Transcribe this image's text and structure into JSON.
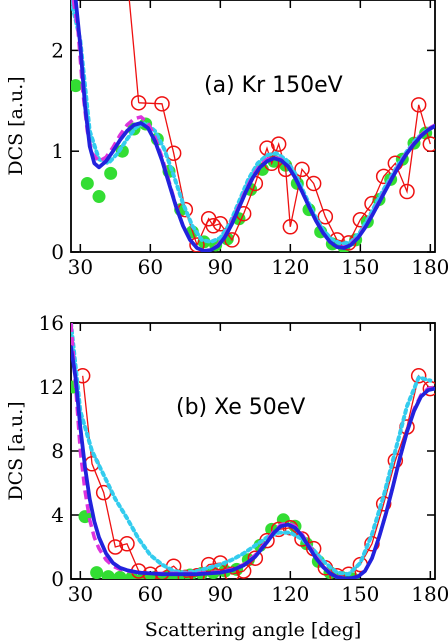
{
  "xlabel": "Scattering angle [deg]",
  "chart_data": [
    {
      "type": "line",
      "title": "(a) Kr 150eV",
      "ylabel": "DCS [a.u.]",
      "xlim": [
        26,
        182
      ],
      "ylim": [
        0,
        2.5
      ],
      "xticks": [
        30,
        60,
        90,
        120,
        150,
        180
      ],
      "yticks": [
        0,
        1,
        2
      ],
      "series": [
        {
          "style": "green-dots",
          "color": "#33dd33",
          "x": [
            28,
            33,
            38,
            43,
            48,
            53,
            58,
            63,
            68,
            73,
            78,
            83,
            88,
            93,
            98,
            103,
            108,
            113,
            118,
            123,
            128,
            133,
            138,
            143,
            148,
            153,
            158,
            163,
            168,
            173,
            178
          ],
          "y": [
            1.65,
            0.68,
            0.55,
            0.78,
            1.0,
            1.22,
            1.27,
            1.12,
            0.8,
            0.42,
            0.2,
            0.1,
            0.07,
            0.13,
            0.33,
            0.62,
            0.82,
            0.9,
            0.86,
            0.68,
            0.42,
            0.2,
            0.08,
            0.05,
            0.12,
            0.3,
            0.52,
            0.72,
            0.92,
            1.08,
            1.18
          ]
        },
        {
          "style": "red-open-circles",
          "color": "#ee1111",
          "x": [
            55,
            65,
            70,
            75,
            80,
            85,
            87,
            90,
            95,
            100,
            105,
            110,
            112,
            115,
            118,
            120,
            125,
            130,
            135,
            140,
            145,
            150,
            155,
            160,
            165,
            170,
            175,
            180
          ],
          "y": [
            1.48,
            1.47,
            0.98,
            0.42,
            0.07,
            0.33,
            0.26,
            0.28,
            0.12,
            0.38,
            0.68,
            1.03,
            0.88,
            1.07,
            0.82,
            0.25,
            0.82,
            0.68,
            0.35,
            0.12,
            0.09,
            0.32,
            0.48,
            0.75,
            0.88,
            0.6,
            1.46,
            1.07
          ]
        },
        {
          "style": "cyan-dotted",
          "color": "#33ccee",
          "x": [
            26,
            30,
            34,
            38,
            42,
            46,
            50,
            54,
            58,
            62,
            66,
            70,
            74,
            78,
            82,
            86,
            90,
            94,
            98,
            102,
            106,
            110,
            114,
            118,
            122,
            126,
            130,
            134,
            138,
            142,
            146,
            150,
            154,
            158,
            162,
            166,
            170,
            174,
            178,
            182
          ],
          "y": [
            2.5,
            2.1,
            1.2,
            0.92,
            0.88,
            0.98,
            1.12,
            1.24,
            1.28,
            1.2,
            1.02,
            0.76,
            0.48,
            0.26,
            0.12,
            0.1,
            0.14,
            0.28,
            0.5,
            0.72,
            0.88,
            0.96,
            0.98,
            0.92,
            0.78,
            0.58,
            0.38,
            0.22,
            0.12,
            0.08,
            0.1,
            0.2,
            0.36,
            0.54,
            0.7,
            0.86,
            1.0,
            1.12,
            1.2,
            1.26
          ]
        },
        {
          "style": "magenta-dashed",
          "color": "#dd33dd",
          "x": [
            27,
            29,
            31,
            33,
            35,
            38,
            41,
            44,
            47,
            50,
            53,
            56,
            59,
            62,
            65,
            68,
            71,
            74,
            77,
            80,
            83,
            86,
            89,
            92,
            95,
            98,
            101,
            104,
            107,
            110,
            113,
            116,
            119,
            122,
            125,
            128,
            131,
            134,
            137,
            140,
            143,
            146,
            149,
            152,
            155,
            158,
            161,
            164,
            167,
            170,
            173,
            176,
            179,
            182
          ],
          "y": [
            2.5,
            2.2,
            1.6,
            1.2,
            0.98,
            0.9,
            0.94,
            1.04,
            1.16,
            1.26,
            1.32,
            1.34,
            1.28,
            1.14,
            0.94,
            0.7,
            0.46,
            0.26,
            0.12,
            0.04,
            0.01,
            0.02,
            0.07,
            0.16,
            0.3,
            0.46,
            0.62,
            0.76,
            0.86,
            0.92,
            0.94,
            0.92,
            0.85,
            0.74,
            0.6,
            0.45,
            0.31,
            0.19,
            0.1,
            0.05,
            0.05,
            0.08,
            0.15,
            0.25,
            0.37,
            0.5,
            0.63,
            0.76,
            0.88,
            0.99,
            1.08,
            1.16,
            1.22,
            1.26
          ]
        },
        {
          "style": "blue-solid",
          "color": "#2222dd",
          "x": [
            28,
            30,
            32,
            34,
            36,
            38,
            41,
            44,
            47,
            50,
            53,
            56,
            59,
            62,
            65,
            68,
            71,
            74,
            77,
            80,
            83,
            86,
            89,
            92,
            95,
            98,
            101,
            104,
            107,
            110,
            113,
            116,
            119,
            122,
            125,
            128,
            131,
            134,
            137,
            140,
            143,
            146,
            149,
            152,
            155,
            158,
            161,
            164,
            167,
            170,
            173,
            176,
            179,
            182
          ],
          "y": [
            2.5,
            2.05,
            1.45,
            1.05,
            0.88,
            0.84,
            0.9,
            1.0,
            1.11,
            1.2,
            1.26,
            1.28,
            1.23,
            1.1,
            0.91,
            0.68,
            0.45,
            0.26,
            0.12,
            0.04,
            0.01,
            0.02,
            0.06,
            0.15,
            0.28,
            0.44,
            0.6,
            0.74,
            0.84,
            0.9,
            0.93,
            0.91,
            0.85,
            0.74,
            0.6,
            0.45,
            0.31,
            0.19,
            0.1,
            0.05,
            0.04,
            0.07,
            0.14,
            0.24,
            0.36,
            0.49,
            0.62,
            0.75,
            0.87,
            0.98,
            1.07,
            1.15,
            1.21,
            1.25
          ]
        },
        {
          "style": "red-line-only",
          "color": "#ee1111",
          "x": [
            51,
            53,
            55
          ],
          "y": [
            2.5,
            2.0,
            1.48
          ]
        }
      ]
    },
    {
      "type": "line",
      "title": "(b) Xe 50eV",
      "ylabel": "DCS [a.u.]",
      "xlim": [
        26,
        182
      ],
      "ylim": [
        0,
        16
      ],
      "xticks": [
        30,
        60,
        90,
        120,
        150,
        180
      ],
      "yticks": [
        0,
        4,
        8,
        12,
        16
      ],
      "series": [
        {
          "style": "green-dots",
          "color": "#33dd33",
          "x": [
            27,
            32,
            37,
            42,
            47,
            52,
            57,
            62,
            67,
            72,
            77,
            82,
            87,
            92,
            97,
            102,
            107,
            112,
            117,
            122,
            127,
            132,
            137,
            142,
            147
          ],
          "y": [
            12.0,
            3.9,
            0.4,
            0.15,
            0.1,
            0.08,
            0.05,
            0.1,
            0.15,
            0.2,
            0.25,
            0.35,
            0.4,
            0.5,
            0.6,
            1.2,
            2.1,
            3.1,
            3.7,
            3.3,
            2.2,
            1.1,
            0.4,
            0.1,
            0.0
          ]
        },
        {
          "style": "red-open-circles",
          "color": "#ee1111",
          "x": [
            31,
            35,
            40,
            45,
            50,
            55,
            60,
            65,
            70,
            75,
            80,
            85,
            90,
            95,
            100,
            105,
            110,
            115,
            120,
            125,
            130,
            135,
            140,
            145,
            150,
            155,
            160,
            165,
            170,
            175,
            180
          ],
          "y": [
            12.7,
            7.2,
            5.4,
            2.0,
            2.2,
            0.5,
            0.3,
            0.4,
            0.8,
            0.1,
            0.2,
            0.9,
            1.0,
            0.3,
            0.5,
            1.3,
            2.4,
            3.1,
            3.2,
            2.5,
            1.9,
            0.7,
            0.2,
            0.3,
            0.9,
            2.2,
            4.7,
            7.4,
            9.5,
            12.7,
            11.9
          ]
        },
        {
          "style": "cyan-dotted",
          "color": "#33ccee",
          "x": [
            26,
            30,
            35,
            40,
            45,
            50,
            55,
            60,
            65,
            70,
            75,
            80,
            85,
            90,
            95,
            100,
            105,
            110,
            115,
            120,
            125,
            130,
            135,
            140,
            145,
            150,
            155,
            160,
            165,
            170,
            175,
            180
          ],
          "y": [
            16.0,
            10.5,
            8.0,
            6.5,
            5.0,
            3.8,
            2.5,
            1.5,
            0.9,
            0.5,
            0.4,
            0.5,
            0.7,
            0.9,
            1.2,
            1.6,
            2.1,
            2.6,
            2.9,
            2.9,
            2.5,
            1.8,
            1.0,
            0.4,
            0.3,
            1.0,
            2.8,
            5.2,
            8.0,
            10.8,
            12.6,
            12.4
          ]
        },
        {
          "style": "magenta-dashed",
          "color": "#dd33dd",
          "x": [
            26,
            28,
            30,
            32,
            34,
            36,
            38,
            41,
            44,
            47,
            50,
            55,
            60,
            65,
            70,
            75,
            80,
            85,
            90,
            95,
            100,
            105,
            110,
            113,
            116,
            119,
            122,
            125,
            128,
            131,
            134,
            137,
            140,
            143,
            146,
            149,
            152,
            155,
            158,
            161,
            164,
            167,
            170,
            173,
            176,
            179,
            182
          ],
          "y": [
            16.0,
            12.0,
            8.0,
            5.5,
            3.7,
            2.6,
            1.9,
            1.2,
            0.8,
            0.6,
            0.5,
            0.4,
            0.35,
            0.35,
            0.35,
            0.35,
            0.35,
            0.4,
            0.45,
            0.6,
            0.9,
            1.5,
            2.4,
            3.0,
            3.4,
            3.5,
            3.3,
            2.8,
            2.1,
            1.4,
            0.8,
            0.4,
            0.15,
            0.05,
            0.05,
            0.15,
            0.5,
            1.3,
            2.6,
            4.1,
            5.8,
            7.6,
            9.2,
            10.6,
            11.5,
            11.9,
            12.0
          ]
        },
        {
          "style": "blue-solid",
          "color": "#2222dd",
          "x": [
            26,
            28,
            30,
            32,
            34,
            36,
            38,
            41,
            44,
            47,
            50,
            55,
            60,
            65,
            70,
            75,
            80,
            85,
            90,
            95,
            100,
            105,
            110,
            113,
            116,
            119,
            122,
            125,
            128,
            131,
            134,
            137,
            140,
            143,
            146,
            149,
            152,
            155,
            158,
            161,
            164,
            167,
            170,
            173,
            176,
            179,
            182
          ],
          "y": [
            14.5,
            12.5,
            9.5,
            7.0,
            5.0,
            3.6,
            2.6,
            1.6,
            1.0,
            0.7,
            0.55,
            0.4,
            0.35,
            0.3,
            0.3,
            0.3,
            0.3,
            0.35,
            0.4,
            0.55,
            0.85,
            1.4,
            2.3,
            2.9,
            3.3,
            3.4,
            3.2,
            2.7,
            2.0,
            1.3,
            0.75,
            0.35,
            0.12,
            0.04,
            0.05,
            0.15,
            0.5,
            1.3,
            2.6,
            4.1,
            5.8,
            7.6,
            9.2,
            10.5,
            11.4,
            11.8,
            11.9
          ]
        }
      ]
    }
  ]
}
